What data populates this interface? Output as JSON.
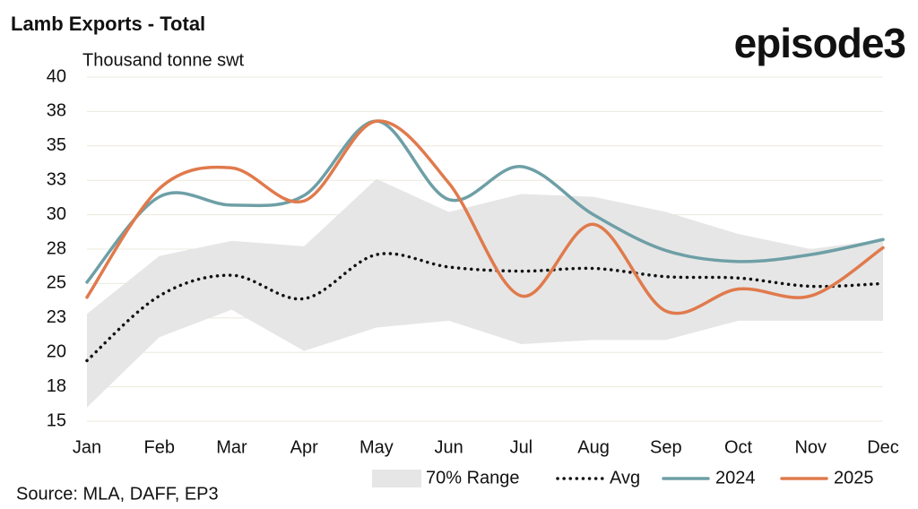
{
  "chart_data": {
    "type": "line",
    "title": "Lamb Exports - Total",
    "logo": "episode3",
    "y_label": "Thousand tonne swt",
    "source": "Source: MLA, DAFF, EP3",
    "categories": [
      "Jan",
      "Feb",
      "Mar",
      "Apr",
      "May",
      "Jun",
      "Jul",
      "Aug",
      "Sep",
      "Oct",
      "Nov",
      "Dec"
    ],
    "ylim": [
      15,
      40
    ],
    "yticks": [
      15,
      {
        "value": 17.5,
        "label": "18"
      },
      20,
      {
        "value": 22.5,
        "label": "23"
      },
      25,
      {
        "value": 27.5,
        "label": "28"
      },
      30,
      {
        "value": 32.5,
        "label": "33"
      },
      35,
      {
        "value": 37.5,
        "label": "38"
      },
      40
    ],
    "grid": true,
    "range": {
      "name": "70% Range",
      "color": "#e6e6e6",
      "low": [
        16.0,
        21.1,
        23.1,
        20.1,
        21.8,
        22.3,
        20.6,
        20.9,
        20.9,
        22.3,
        22.3,
        22.3
      ],
      "high": [
        22.8,
        27.0,
        28.1,
        27.7,
        32.6,
        30.2,
        31.5,
        31.3,
        30.2,
        28.6,
        27.5,
        28.2
      ]
    },
    "series": [
      {
        "name": "Avg",
        "color": "#111111",
        "style": "dotted",
        "values": [
          19.4,
          24.1,
          25.6,
          23.9,
          27.1,
          26.2,
          25.9,
          26.1,
          25.5,
          25.4,
          24.8,
          25.0
        ]
      },
      {
        "name": "2024",
        "color": "#6e9fa6",
        "style": "solid",
        "values": [
          25.1,
          31.3,
          30.7,
          31.4,
          36.8,
          31.1,
          33.5,
          30.0,
          27.4,
          26.6,
          27.1,
          28.2
        ]
      },
      {
        "name": "2025",
        "color": "#e07a4c",
        "style": "solid",
        "values": [
          24.0,
          31.9,
          33.4,
          31.0,
          36.8,
          32.3,
          24.1,
          29.3,
          23.0,
          24.6,
          24.1,
          27.6
        ]
      }
    ]
  }
}
